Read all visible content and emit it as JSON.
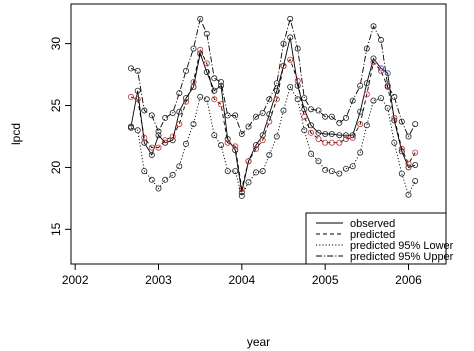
{
  "chart_data": {
    "type": "line",
    "title": "",
    "xlabel": "year",
    "ylabel": "lpcd",
    "xlim": [
      2001.95,
      2006.45
    ],
    "ylim": [
      12.2,
      33.2
    ],
    "x_ticks": [
      2002,
      2003,
      2004,
      2005,
      2006
    ],
    "x_tick_labels": [
      "2002",
      "2003",
      "2004",
      "2005",
      "2006"
    ],
    "y_ticks": [
      15,
      20,
      25,
      30
    ],
    "y_tick_labels": [
      "15",
      "20",
      "25",
      "30"
    ],
    "legend_position": "bottom-right",
    "colors": {
      "series_line": "#000000",
      "point_black": "#222222",
      "point_red": "#c03030",
      "point_blue": "#3050c0"
    },
    "series": [
      {
        "name": "observed",
        "line_style": "solid",
        "x": [
          2002.67,
          2002.75,
          2002.83,
          2002.92,
          2003.0,
          2003.08,
          2003.17,
          2003.25,
          2003.33,
          2003.42,
          2003.5,
          2003.58,
          2003.67,
          2003.75,
          2003.83,
          2003.92,
          2004.0,
          2004.08,
          2004.17,
          2004.25,
          2004.33,
          2004.42,
          2004.5,
          2004.58,
          2004.67,
          2004.75,
          2004.83,
          2004.92,
          2005.0,
          2005.08,
          2005.17,
          2005.25,
          2005.33,
          2005.42,
          2005.5,
          2005.58,
          2005.67,
          2005.75,
          2005.83,
          2005.92,
          2006.0,
          2006.08
        ],
        "values": [
          23.3,
          26.2,
          22.0,
          21.0,
          22.6,
          22.0,
          22.2,
          24.5,
          25.6,
          26.5,
          29.2,
          27.7,
          26.2,
          26.6,
          22.3,
          21.4,
          18.0,
          20.5,
          21.8,
          22.6,
          24.3,
          26.2,
          28.2,
          30.5,
          26.6,
          24.7,
          23.4,
          22.8,
          22.7,
          22.7,
          22.6,
          22.6,
          22.6,
          24.5,
          26.8,
          28.8,
          28.0,
          27.6,
          23.8,
          21.3,
          20.0,
          20.2
        ]
      },
      {
        "name": "predicted",
        "line_style": "dashed",
        "x": [
          2002.67,
          2002.75,
          2002.83,
          2002.92,
          2003.0,
          2003.08,
          2003.17,
          2003.25,
          2003.33,
          2003.42,
          2003.5,
          2003.58,
          2003.67,
          2003.75,
          2003.83,
          2003.92,
          2004.0,
          2004.08,
          2004.17,
          2004.25,
          2004.33,
          2004.42,
          2004.5,
          2004.58,
          2004.67,
          2004.75,
          2004.83,
          2004.92,
          2005.0,
          2005.08,
          2005.17,
          2005.25,
          2005.33,
          2005.42,
          2005.5,
          2005.58,
          2005.67,
          2005.75,
          2005.83,
          2005.92,
          2006.0,
          2006.08
        ],
        "values": [
          25.7,
          25.5,
          22.4,
          21.6,
          21.6,
          22.2,
          22.5,
          23.5,
          25.3,
          26.9,
          29.5,
          28.4,
          25.5,
          25.1,
          22.0,
          21.7,
          18.3,
          20.5,
          21.5,
          22.2,
          23.7,
          25.5,
          28.2,
          28.7,
          27.0,
          24.1,
          22.8,
          22.3,
          22.0,
          22.0,
          22.0,
          22.3,
          22.4,
          23.5,
          25.9,
          28.5,
          27.8,
          26.5,
          24.0,
          21.5,
          20.3,
          21.2
        ]
      },
      {
        "name": "predicted 95% Lower",
        "line_style": "dotted",
        "x": [
          2002.67,
          2002.75,
          2002.83,
          2002.92,
          2003.0,
          2003.08,
          2003.17,
          2003.25,
          2003.33,
          2003.42,
          2003.5,
          2003.58,
          2003.67,
          2003.75,
          2003.83,
          2003.92,
          2004.0,
          2004.08,
          2004.17,
          2004.25,
          2004.33,
          2004.42,
          2004.5,
          2004.58,
          2004.67,
          2004.75,
          2004.83,
          2004.92,
          2005.0,
          2005.08,
          2005.17,
          2005.25,
          2005.33,
          2005.42,
          2005.5,
          2005.58,
          2005.67,
          2005.75,
          2005.83,
          2005.92,
          2006.0,
          2006.08
        ],
        "values": [
          23.2,
          23.0,
          19.7,
          19.0,
          18.3,
          19.0,
          19.4,
          20.1,
          21.9,
          23.5,
          25.7,
          25.5,
          22.6,
          21.8,
          19.7,
          19.7,
          17.7,
          18.8,
          19.6,
          19.7,
          21.0,
          22.5,
          24.6,
          26.5,
          25.5,
          23.0,
          21.1,
          20.5,
          19.8,
          19.7,
          19.5,
          19.9,
          20.1,
          21.2,
          23.4,
          25.4,
          25.6,
          24.8,
          22.0,
          19.5,
          17.8,
          18.9
        ]
      },
      {
        "name": "predicted 95% Upper",
        "line_style": "dotdash",
        "x": [
          2002.67,
          2002.75,
          2002.83,
          2002.92,
          2003.0,
          2003.08,
          2003.17,
          2003.25,
          2003.33,
          2003.42,
          2003.5,
          2003.58,
          2003.67,
          2003.75,
          2003.83,
          2003.92,
          2004.0,
          2004.08,
          2004.17,
          2004.25,
          2004.33,
          2004.42,
          2004.5,
          2004.58,
          2004.67,
          2004.75,
          2004.83,
          2004.92,
          2005.0,
          2005.08,
          2005.17,
          2005.25,
          2005.33,
          2005.42,
          2005.5,
          2005.58,
          2005.67,
          2005.75,
          2005.83,
          2005.92,
          2006.0,
          2006.08
        ],
        "values": [
          28.0,
          27.8,
          24.6,
          24.2,
          22.9,
          24.0,
          24.4,
          26.0,
          27.8,
          29.6,
          32.0,
          30.8,
          27.2,
          26.9,
          24.2,
          24.2,
          22.7,
          23.3,
          24.1,
          24.4,
          25.5,
          26.8,
          30.0,
          32.0,
          29.6,
          25.6,
          24.7,
          24.6,
          24.1,
          24.1,
          23.6,
          24.0,
          25.4,
          26.6,
          29.6,
          31.4,
          30.3,
          26.6,
          25.7,
          23.7,
          22.5,
          23.5
        ]
      }
    ]
  }
}
